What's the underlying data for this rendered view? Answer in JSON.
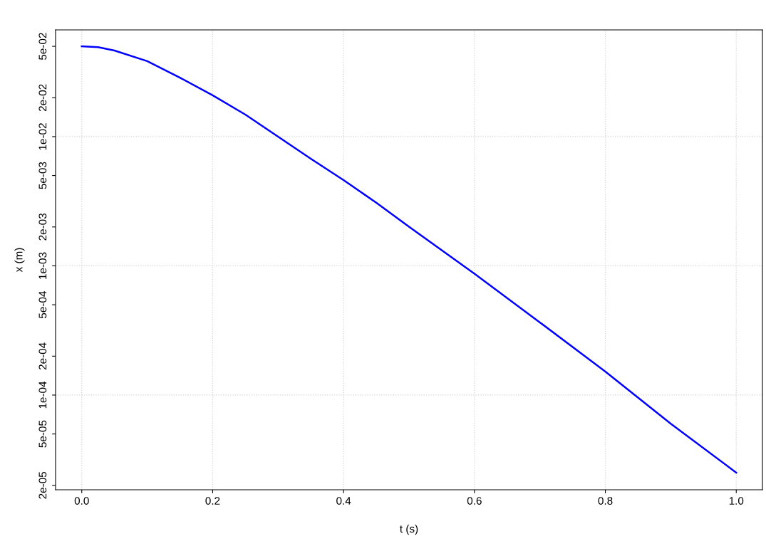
{
  "chart_data": {
    "type": "line",
    "xlabel": "t (s)",
    "ylabel": "x (m)",
    "log": "y",
    "grid": true,
    "marker": "none",
    "line_style": "solid",
    "xlim": [
      -0.04,
      1.04
    ],
    "xticks": [
      {
        "value": 0,
        "label": "0.0"
      },
      0.2,
      0.4,
      0.6,
      0.8,
      {
        "value": 1,
        "label": "1.0"
      }
    ],
    "ylim": [
      1.85e-05,
      0.067
    ],
    "yticks": [
      {
        "value": 2e-05,
        "label": "2e-05"
      },
      {
        "value": 5e-05,
        "label": "5e-05"
      },
      {
        "value": 0.0001,
        "label": "1e-04"
      },
      {
        "value": 0.0002,
        "label": "2e-04"
      },
      {
        "value": 0.0005,
        "label": "5e-04"
      },
      {
        "value": 0.001,
        "label": "1e-03"
      },
      {
        "value": 0.002,
        "label": "2e-03"
      },
      {
        "value": 0.005,
        "label": "5e-03"
      },
      {
        "value": 0.01,
        "label": "1e-02"
      },
      {
        "value": 0.02,
        "label": "2e-02"
      },
      {
        "value": 0.05,
        "label": "5e-02"
      }
    ],
    "x": [
      0,
      0.025,
      0.05,
      0.1,
      0.15,
      0.2,
      0.25,
      0.3,
      0.35,
      0.4,
      0.45,
      0.5,
      0.6,
      0.7,
      0.8,
      0.9,
      1.0
    ],
    "series": [
      {
        "color": "#0000ff",
        "values": [
          0.05,
          0.0492,
          0.0464,
          0.0384,
          0.0286,
          0.0209,
          0.0148,
          0.01,
          0.00675,
          0.00461,
          0.00308,
          0.00201,
          0.00087,
          0.000365,
          0.000152,
          6e-05,
          2.51e-05
        ]
      }
    ]
  }
}
